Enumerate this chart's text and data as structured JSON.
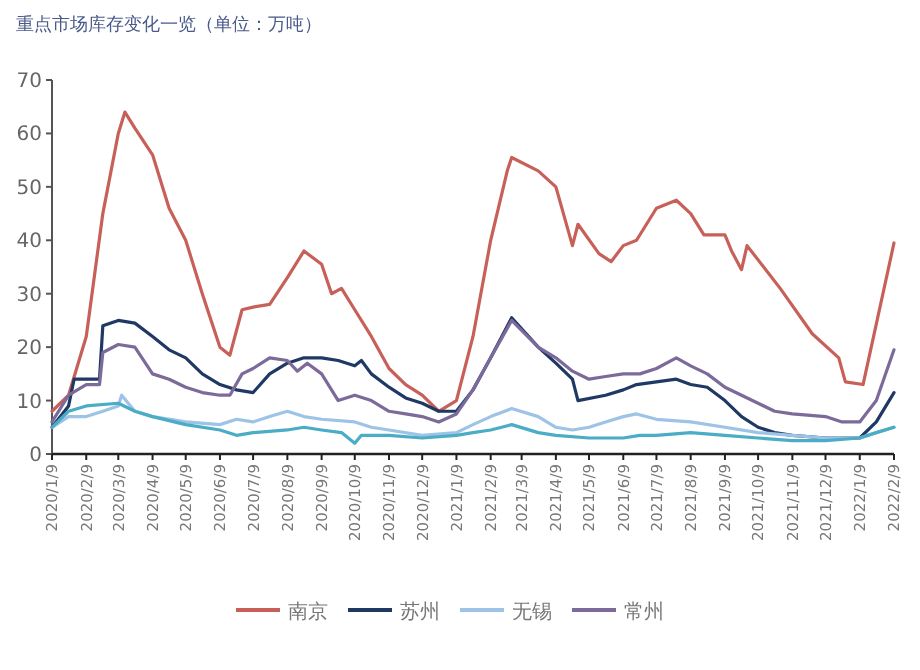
{
  "chart_data": {
    "type": "line",
    "title": "重点市场库存变化一览（单位：万吨）",
    "legend": "bottom",
    "xlim": [
      "2020-01-09",
      "2022-02-09"
    ],
    "xticks": [
      {
        "value": "2020-01-09",
        "label": "2020/1/9"
      },
      {
        "value": "2020-02-09",
        "label": "2020/2/9"
      },
      {
        "value": "2020-03-09",
        "label": "2020/3/9"
      },
      {
        "value": "2020-04-09",
        "label": "2020/4/9"
      },
      {
        "value": "2020-05-09",
        "label": "2020/5/9"
      },
      {
        "value": "2020-06-09",
        "label": "2020/6/9"
      },
      {
        "value": "2020-07-09",
        "label": "2020/7/9"
      },
      {
        "value": "2020-08-09",
        "label": "2020/8/9"
      },
      {
        "value": "2020-09-09",
        "label": "2020/9/9"
      },
      {
        "value": "2020-10-09",
        "label": "2020/10/9"
      },
      {
        "value": "2020-11-09",
        "label": "2020/11/9"
      },
      {
        "value": "2020-12-09",
        "label": "2020/12/9"
      },
      {
        "value": "2021-01-09",
        "label": "2021/1/9"
      },
      {
        "value": "2021-02-09",
        "label": "2021/2/9"
      },
      {
        "value": "2021-03-09",
        "label": "2021/3/9"
      },
      {
        "value": "2021-04-09",
        "label": "2021/4/9"
      },
      {
        "value": "2021-05-09",
        "label": "2021/5/9"
      },
      {
        "value": "2021-06-09",
        "label": "2021/6/9"
      },
      {
        "value": "2021-07-09",
        "label": "2021/7/9"
      },
      {
        "value": "2021-08-09",
        "label": "2021/8/9"
      },
      {
        "value": "2021-09-09",
        "label": "2021/9/9"
      },
      {
        "value": "2021-10-09",
        "label": "2021/10/9"
      },
      {
        "value": "2021-11-09",
        "label": "2021/11/9"
      },
      {
        "value": "2021-12-09",
        "label": "2021/12/9"
      },
      {
        "value": "2022-01-09",
        "label": "2022/1/9"
      },
      {
        "value": "2022-02-09",
        "label": "2022/2/9"
      }
    ],
    "ylim": [
      0,
      70
    ],
    "yticks": [
      0,
      10,
      20,
      30,
      40,
      50,
      60,
      70
    ],
    "series": [
      {
        "name": "南京",
        "color": "#c8605a",
        "x": [
          "2020-01-09",
          "2020-01-24",
          "2020-02-09",
          "2020-02-24",
          "2020-03-09",
          "2020-03-15",
          "2020-03-24",
          "2020-04-09",
          "2020-04-24",
          "2020-05-09",
          "2020-05-24",
          "2020-06-09",
          "2020-06-18",
          "2020-06-29",
          "2020-07-09",
          "2020-07-24",
          "2020-08-09",
          "2020-08-24",
          "2020-09-09",
          "2020-09-18",
          "2020-09-27",
          "2020-10-09",
          "2020-10-24",
          "2020-11-09",
          "2020-11-24",
          "2020-12-09",
          "2020-12-24",
          "2021-01-09",
          "2021-01-24",
          "2021-02-09",
          "2021-02-24",
          "2021-02-28",
          "2021-03-24",
          "2021-04-09",
          "2021-04-24",
          "2021-04-29",
          "2021-05-18",
          "2021-05-29",
          "2021-06-09",
          "2021-06-21",
          "2021-07-09",
          "2021-07-27",
          "2021-08-09",
          "2021-08-21",
          "2021-09-09",
          "2021-09-15",
          "2021-09-24",
          "2021-09-29",
          "2021-10-29",
          "2021-11-27",
          "2021-12-21",
          "2021-12-27",
          "2022-01-12",
          "2022-02-09"
        ],
        "values": [
          8,
          11,
          22,
          45,
          60,
          64,
          61,
          56,
          46,
          40,
          30,
          20,
          18.5,
          27,
          27.5,
          28,
          33,
          38,
          35.5,
          30,
          31,
          27,
          22,
          16,
          13,
          11,
          8,
          10,
          22,
          40,
          53,
          55.5,
          53,
          50,
          39,
          43,
          37.5,
          36,
          39,
          40,
          46,
          47.5,
          45,
          41,
          41,
          38,
          34.5,
          39,
          31,
          22.5,
          18,
          13.5,
          13,
          39.5
        ]
      },
      {
        "name": "苏州",
        "color": "#1f3864",
        "x": [
          "2020-01-09",
          "2020-01-24",
          "2020-01-29",
          "2020-02-09",
          "2020-02-21",
          "2020-02-24",
          "2020-03-09",
          "2020-03-24",
          "2020-04-09",
          "2020-04-24",
          "2020-05-09",
          "2020-05-24",
          "2020-06-09",
          "2020-06-24",
          "2020-07-09",
          "2020-07-24",
          "2020-08-09",
          "2020-08-24",
          "2020-09-09",
          "2020-09-24",
          "2020-10-09",
          "2020-10-15",
          "2020-10-24",
          "2020-11-09",
          "2020-11-24",
          "2020-12-09",
          "2020-12-24",
          "2021-01-09",
          "2021-01-24",
          "2021-02-09",
          "2021-02-28",
          "2021-03-24",
          "2021-04-09",
          "2021-04-24",
          "2021-04-29",
          "2021-05-24",
          "2021-06-09",
          "2021-06-21",
          "2021-07-09",
          "2021-07-27",
          "2021-08-09",
          "2021-08-24",
          "2021-09-09",
          "2021-09-24",
          "2021-10-09",
          "2021-10-24",
          "2021-11-09",
          "2021-12-09",
          "2022-01-09",
          "2022-01-24",
          "2022-02-09"
        ],
        "values": [
          5,
          9,
          14,
          14,
          14,
          24,
          25,
          24.5,
          22,
          19.5,
          18,
          15,
          13,
          12,
          11.5,
          15,
          17,
          18,
          18,
          17.5,
          16.5,
          17.5,
          15,
          12.5,
          10.5,
          9.5,
          8,
          8,
          12,
          18,
          25.5,
          20,
          17,
          14,
          10,
          11,
          12,
          13,
          13.5,
          14,
          13,
          12.5,
          10,
          7,
          5,
          4,
          3.5,
          3,
          3,
          6,
          11.5
        ]
      },
      {
        "name": "无锡",
        "color": "#9dc3e6",
        "x": [
          "2020-01-09",
          "2020-01-24",
          "2020-02-09",
          "2020-02-24",
          "2020-03-09",
          "2020-03-12",
          "2020-03-24",
          "2020-04-09",
          "2020-05-09",
          "2020-06-09",
          "2020-06-24",
          "2020-07-09",
          "2020-07-24",
          "2020-08-09",
          "2020-08-24",
          "2020-09-09",
          "2020-10-09",
          "2020-10-24",
          "2020-11-09",
          "2020-12-09",
          "2021-01-09",
          "2021-01-24",
          "2021-02-09",
          "2021-02-28",
          "2021-03-24",
          "2021-04-09",
          "2021-04-24",
          "2021-05-09",
          "2021-05-24",
          "2021-06-09",
          "2021-06-21",
          "2021-07-09",
          "2021-08-09",
          "2021-09-09",
          "2021-10-09",
          "2021-11-09",
          "2021-12-09",
          "2022-01-09",
          "2022-01-24",
          "2022-02-09"
        ],
        "values": [
          5,
          7,
          7,
          8,
          9,
          11,
          8,
          7,
          6,
          5.5,
          6.5,
          6,
          7,
          8,
          7,
          6.5,
          6,
          5,
          4.5,
          3.5,
          4,
          5.5,
          7,
          8.5,
          7,
          5,
          4.5,
          5,
          6,
          7,
          7.5,
          6.5,
          6,
          5,
          4,
          3.5,
          3,
          3,
          4,
          5
        ]
      },
      {
        "name": "常州",
        "color": "#7b6a9a",
        "x": [
          "2020-01-09",
          "2020-01-24",
          "2020-02-09",
          "2020-02-21",
          "2020-02-24",
          "2020-03-09",
          "2020-03-24",
          "2020-04-09",
          "2020-04-24",
          "2020-05-09",
          "2020-05-24",
          "2020-06-09",
          "2020-06-18",
          "2020-06-29",
          "2020-07-09",
          "2020-07-24",
          "2020-08-09",
          "2020-08-18",
          "2020-08-27",
          "2020-09-09",
          "2020-09-24",
          "2020-10-09",
          "2020-10-24",
          "2020-11-09",
          "2020-11-24",
          "2020-12-09",
          "2020-12-24",
          "2021-01-09",
          "2021-01-24",
          "2021-02-09",
          "2021-02-28",
          "2021-03-24",
          "2021-04-09",
          "2021-04-24",
          "2021-05-09",
          "2021-05-24",
          "2021-06-09",
          "2021-06-24",
          "2021-07-09",
          "2021-07-27",
          "2021-08-09",
          "2021-08-24",
          "2021-09-09",
          "2021-09-24",
          "2021-10-09",
          "2021-10-24",
          "2021-11-09",
          "2021-12-09",
          "2021-12-24",
          "2022-01-09",
          "2022-01-24",
          "2022-02-09"
        ],
        "values": [
          6,
          11,
          13,
          13,
          19,
          20.5,
          20,
          15,
          14,
          12.5,
          11.5,
          11,
          11,
          15,
          16,
          18,
          17.5,
          15.5,
          17,
          15,
          10,
          11,
          10,
          8,
          7.5,
          7,
          6,
          7.5,
          12,
          18,
          25,
          20,
          18,
          15.5,
          14,
          14.5,
          15,
          15,
          16,
          18,
          16.5,
          15,
          12.5,
          11,
          9.5,
          8,
          7.5,
          7,
          6,
          6,
          10,
          19.5
        ]
      },
      {
        "color": "#4bacc6",
        "x": [
          "2020-01-09",
          "2020-01-24",
          "2020-02-09",
          "2020-03-09",
          "2020-03-24",
          "2020-04-09",
          "2020-05-09",
          "2020-06-09",
          "2020-06-24",
          "2020-07-09",
          "2020-08-09",
          "2020-08-24",
          "2020-09-09",
          "2020-09-27",
          "2020-10-09",
          "2020-10-15",
          "2020-11-09",
          "2020-12-09",
          "2021-01-09",
          "2021-01-24",
          "2021-02-09",
          "2021-02-28",
          "2021-03-24",
          "2021-04-09",
          "2021-05-09",
          "2021-06-09",
          "2021-06-24",
          "2021-07-09",
          "2021-08-09",
          "2021-09-09",
          "2021-10-09",
          "2021-11-09",
          "2021-12-09",
          "2022-01-09",
          "2022-01-24",
          "2022-02-09"
        ],
        "values": [
          5,
          8,
          9,
          9.5,
          8,
          7,
          5.5,
          4.5,
          3.5,
          4,
          4.5,
          5,
          4.5,
          4,
          2,
          3.5,
          3.5,
          3,
          3.5,
          4,
          4.5,
          5.5,
          4,
          3.5,
          3,
          3,
          3.5,
          3.5,
          4,
          3.5,
          3,
          2.5,
          2.5,
          3,
          4,
          5
        ]
      }
    ]
  }
}
